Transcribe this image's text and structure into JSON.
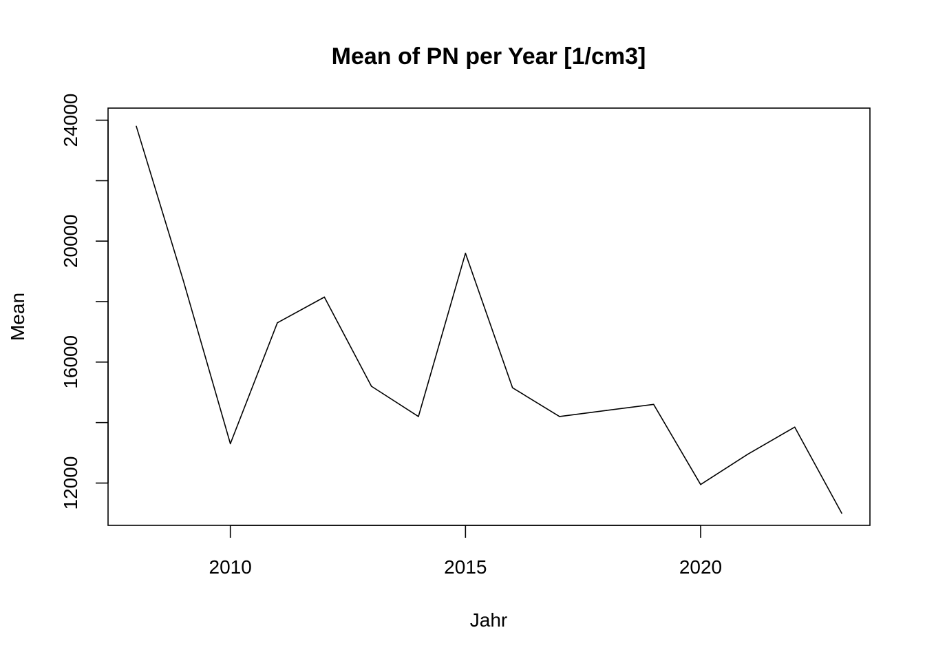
{
  "chart_data": {
    "type": "line",
    "title": "Mean of PN per Year [1/cm3]",
    "xlabel": "Jahr",
    "ylabel": "Mean",
    "xlim": [
      2007.4,
      2023.6
    ],
    "ylim": [
      10600,
      24400
    ],
    "x_ticks": [
      2010,
      2015,
      2020
    ],
    "x_tick_labels": [
      "2010",
      "2015",
      "2020"
    ],
    "y_ticks": [
      12000,
      14000,
      16000,
      18000,
      20000,
      22000,
      24000
    ],
    "y_tick_labels": [
      "12000",
      "",
      "16000",
      "",
      "20000",
      "",
      "24000"
    ],
    "grid": false,
    "color": "#000000",
    "series": [
      {
        "x": [
          2008,
          2009,
          2010,
          2011,
          2012,
          2013,
          2014,
          2015,
          2016,
          2017,
          2018,
          2019,
          2020,
          2021,
          2022,
          2023
        ],
        "y": [
          23800,
          18700,
          13300,
          17300,
          18150,
          15200,
          14200,
          19600,
          15150,
          14200,
          14400,
          14600,
          11950,
          12950,
          13850,
          11000
        ]
      }
    ]
  }
}
